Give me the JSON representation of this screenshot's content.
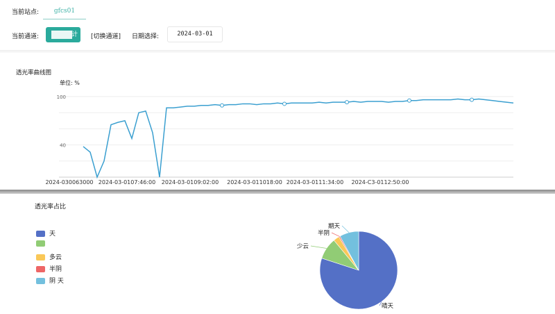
{
  "header": {
    "site_label": "当前站点:",
    "site_tab": "gfcs01",
    "channel_label": "当前通道:",
    "channel_button": "计",
    "switch_channel": "[切换通道]",
    "date_label": "日期选择:",
    "date_value": "2024-03-01"
  },
  "line_section": {
    "title": "透光率曲线图",
    "unit": "单位: %"
  },
  "pie_section": {
    "title": "透光率占比"
  },
  "colors": {
    "accent": "#2aaa9c",
    "line": "#3a9fd0"
  },
  "chart_data": [
    {
      "type": "line",
      "ylim": [
        0,
        100
      ],
      "y_tick_labels": [
        "100",
        "40"
      ],
      "grid": true,
      "x_tick_labels": [
        "2024-030063000",
        "2024-03-0107:46:00",
        "2024-03-0109:02:00",
        "2024-03-011018:00",
        "2024-03-0111:34:00",
        "2024-C3-0112:50:00"
      ],
      "values": [
        null,
        38,
        31,
        0,
        20,
        65,
        68,
        70,
        48,
        80,
        82,
        55,
        0,
        86,
        86,
        87,
        88,
        88,
        89,
        89,
        90,
        89,
        90,
        90,
        91,
        91,
        90,
        91,
        91,
        92,
        91,
        92,
        92,
        92,
        92,
        93,
        92,
        93,
        93,
        93,
        94,
        93,
        94,
        94,
        94,
        93,
        94,
        94,
        95,
        95,
        96,
        96,
        96,
        96,
        96,
        97,
        96,
        96,
        97,
        96,
        95,
        94,
        93,
        92
      ]
    },
    {
      "type": "pie",
      "legend_position": "left",
      "legend": [
        "天",
        "",
        "多云",
        "半阴",
        "阴 天"
      ],
      "slices": [
        {
          "label": "晴天",
          "value": 80,
          "color": "#5470c6"
        },
        {
          "label": "少云",
          "value": 9,
          "color": "#91cc75"
        },
        {
          "label": "",
          "value": 2.5,
          "color": "#fac858"
        },
        {
          "label": "半阴",
          "value": 0.5,
          "color": "#ee6666"
        },
        {
          "label": "期天",
          "value": 8,
          "color": "#73c0de"
        }
      ]
    }
  ]
}
